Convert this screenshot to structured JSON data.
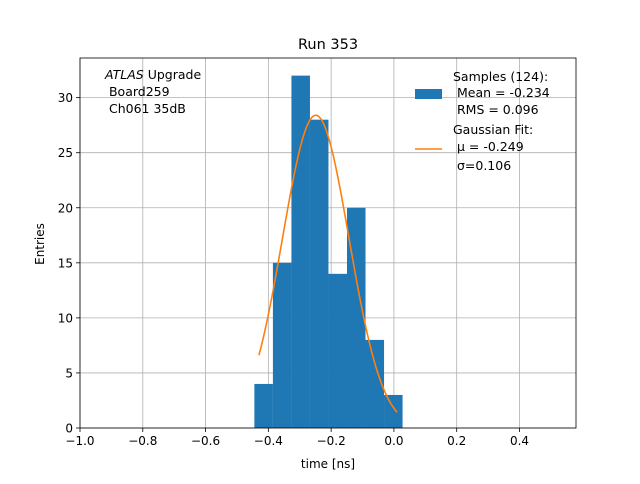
{
  "chart_data": {
    "type": "bar",
    "title": "Run 353",
    "xlabel": "time [ns]",
    "ylabel": "Entries",
    "xlim": [
      -1.0,
      0.58
    ],
    "ylim": [
      0,
      33.6
    ],
    "grid": true,
    "x_ticks": [
      -1.0,
      -0.8,
      -0.6,
      -0.4,
      -0.2,
      0.0,
      0.2,
      0.4
    ],
    "x_tick_labels": [
      "−1.0",
      "−0.8",
      "−0.6",
      "−0.4",
      "−0.2",
      "0.0",
      "0.2",
      "0.4"
    ],
    "y_ticks": [
      0,
      5,
      10,
      15,
      20,
      25,
      30
    ],
    "y_tick_labels": [
      "0",
      "5",
      "10",
      "15",
      "20",
      "25",
      "30"
    ],
    "histogram": {
      "color": "#1f77b4",
      "bins": [
        {
          "x0": -0.4445,
          "x1": -0.3855,
          "count": 4
        },
        {
          "x0": -0.3855,
          "x1": -0.3265,
          "count": 15
        },
        {
          "x0": -0.3265,
          "x1": -0.2675,
          "count": 32
        },
        {
          "x0": -0.2675,
          "x1": -0.2085,
          "count": 28
        },
        {
          "x0": -0.2085,
          "x1": -0.1495,
          "count": 14
        },
        {
          "x0": -0.1495,
          "x1": -0.0905,
          "count": 20
        },
        {
          "x0": -0.0905,
          "x1": -0.0315,
          "count": 8
        },
        {
          "x0": -0.0315,
          "x1": 0.0275,
          "count": 3
        }
      ]
    },
    "fit": {
      "color": "#ff7f0e",
      "mu": -0.249,
      "sigma": 0.106,
      "amplitude": 28.4,
      "x_range": [
        -0.43,
        0.01
      ]
    },
    "legend": {
      "placement": "top-right",
      "entries": [
        {
          "lines": [
            "Samples (124):",
            " Mean = -0.234",
            " RMS = 0.096"
          ],
          "kind": "patch",
          "color": "#1f77b4"
        },
        {
          "lines": [
            "Gaussian Fit:",
            " μ = -0.249",
            " σ=0.106"
          ],
          "kind": "line",
          "color": "#ff7f0e"
        }
      ]
    },
    "annotation": {
      "italic_word": "ATLAS",
      "first_line_rest": " Upgrade",
      "lines": [
        " Board259",
        " Ch061 35dB"
      ]
    }
  }
}
